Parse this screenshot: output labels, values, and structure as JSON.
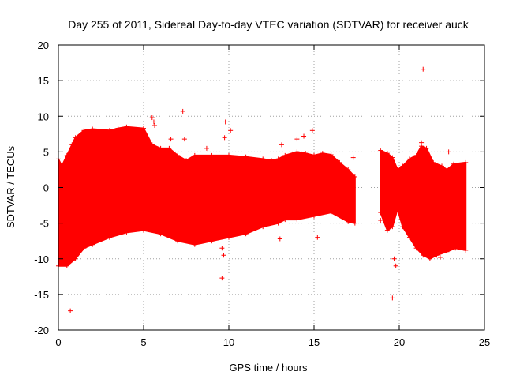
{
  "chart_data": {
    "type": "scatter",
    "title": "Day 255 of 2011, Sidereal Day-to-day VTEC variation (SDTVAR) for receiver auck",
    "xlabel": "GPS time / hours",
    "ylabel": "SDTVAR / TECUs",
    "xlim": [
      0,
      25
    ],
    "ylim": [
      -20,
      20
    ],
    "xticks": [
      0,
      5,
      10,
      15,
      20,
      25
    ],
    "yticks": [
      -20,
      -15,
      -10,
      -5,
      0,
      5,
      10,
      15,
      20
    ],
    "xtick_labels": [
      "0",
      "5",
      "10",
      "15",
      "20",
      "25"
    ],
    "ytick_labels": [
      "-20",
      "-15",
      "-10",
      "-5",
      "0",
      "5",
      "10",
      "15",
      "20"
    ],
    "grid": true,
    "marker": "+",
    "color": "#ff0000",
    "series": [
      {
        "name": "SDTVAR",
        "envelope": {
          "note": "dense band of points; upper and lower bounds vs. GPS time",
          "segments": [
            {
              "upper": [
                [
                  0.0,
                  4.0
                ],
                [
                  0.2,
                  3.0
                ],
                [
                  0.5,
                  4.5
                ],
                [
                  0.8,
                  6.0
                ],
                [
                  1.0,
                  7.0
                ],
                [
                  1.5,
                  8.0
                ],
                [
                  2.0,
                  8.2
                ],
                [
                  3.0,
                  8.0
                ],
                [
                  3.5,
                  8.3
                ],
                [
                  4.0,
                  8.5
                ],
                [
                  5.0,
                  8.3
                ],
                [
                  5.5,
                  6.0
                ],
                [
                  6.0,
                  5.5
                ],
                [
                  6.5,
                  5.5
                ],
                [
                  7.0,
                  4.5
                ],
                [
                  7.5,
                  3.8
                ],
                [
                  8.0,
                  4.5
                ],
                [
                  9.0,
                  4.5
                ],
                [
                  10.0,
                  4.5
                ],
                [
                  11.0,
                  4.3
                ],
                [
                  12.0,
                  4.0
                ],
                [
                  12.5,
                  3.8
                ],
                [
                  12.9,
                  4.0
                ],
                [
                  13.3,
                  4.5
                ],
                [
                  14.0,
                  5.0
                ],
                [
                  14.5,
                  4.8
                ],
                [
                  15.0,
                  4.5
                ],
                [
                  15.5,
                  4.8
                ],
                [
                  16.0,
                  4.6
                ],
                [
                  16.5,
                  3.5
                ],
                [
                  17.0,
                  2.5
                ],
                [
                  17.4,
                  1.5
                ]
              ],
              "lower": [
                [
                  0.0,
                  -11.0
                ],
                [
                  0.5,
                  -11.0
                ],
                [
                  1.0,
                  -10.0
                ],
                [
                  1.5,
                  -8.5
                ],
                [
                  2.0,
                  -8.0
                ],
                [
                  3.0,
                  -7.0
                ],
                [
                  4.0,
                  -6.3
                ],
                [
                  5.0,
                  -6.0
                ],
                [
                  6.0,
                  -6.5
                ],
                [
                  7.0,
                  -7.5
                ],
                [
                  8.0,
                  -8.0
                ],
                [
                  9.0,
                  -7.5
                ],
                [
                  10.0,
                  -7.0
                ],
                [
                  11.0,
                  -6.5
                ],
                [
                  12.0,
                  -5.5
                ],
                [
                  12.9,
                  -5.0
                ],
                [
                  13.3,
                  -4.5
                ],
                [
                  14.0,
                  -4.5
                ],
                [
                  15.0,
                  -4.0
                ],
                [
                  16.0,
                  -3.5
                ],
                [
                  17.0,
                  -4.8
                ],
                [
                  17.4,
                  -5.0
                ]
              ]
            },
            {
              "upper": [
                [
                  18.9,
                  5.2
                ],
                [
                  19.3,
                  4.8
                ],
                [
                  19.6,
                  4.2
                ],
                [
                  19.9,
                  2.5
                ],
                [
                  20.2,
                  3.0
                ],
                [
                  20.6,
                  4.0
                ],
                [
                  21.0,
                  4.5
                ],
                [
                  21.3,
                  5.8
                ],
                [
                  21.6,
                  5.5
                ],
                [
                  22.0,
                  3.5
                ],
                [
                  22.5,
                  3.0
                ],
                [
                  22.8,
                  2.5
                ],
                [
                  23.2,
                  3.3
                ],
                [
                  23.9,
                  3.5
                ]
              ],
              "lower": [
                [
                  18.9,
                  -3.5
                ],
                [
                  19.3,
                  -6.0
                ],
                [
                  19.6,
                  -5.5
                ],
                [
                  19.9,
                  -3.0
                ],
                [
                  20.2,
                  -5.5
                ],
                [
                  20.6,
                  -7.0
                ],
                [
                  21.0,
                  -8.5
                ],
                [
                  21.4,
                  -9.5
                ],
                [
                  21.8,
                  -10.0
                ],
                [
                  22.2,
                  -9.5
                ],
                [
                  22.8,
                  -9.0
                ],
                [
                  23.3,
                  -8.5
                ],
                [
                  23.9,
                  -8.8
                ]
              ]
            }
          ]
        },
        "outliers": [
          {
            "x": 0.7,
            "y": -17.3
          },
          {
            "x": 7.3,
            "y": 10.7
          },
          {
            "x": 7.4,
            "y": 6.8
          },
          {
            "x": 5.5,
            "y": 9.8
          },
          {
            "x": 5.6,
            "y": 9.2
          },
          {
            "x": 5.65,
            "y": 8.7
          },
          {
            "x": 6.6,
            "y": 6.8
          },
          {
            "x": 8.7,
            "y": 5.5
          },
          {
            "x": 9.8,
            "y": 9.2
          },
          {
            "x": 9.75,
            "y": 7.0
          },
          {
            "x": 10.1,
            "y": 8.0
          },
          {
            "x": 9.6,
            "y": -8.5
          },
          {
            "x": 9.7,
            "y": -9.5
          },
          {
            "x": 9.6,
            "y": -12.7
          },
          {
            "x": 13.1,
            "y": 6.0
          },
          {
            "x": 13.0,
            "y": -7.2
          },
          {
            "x": 14.0,
            "y": 6.8
          },
          {
            "x": 14.4,
            "y": 7.2
          },
          {
            "x": 14.9,
            "y": 8.0
          },
          {
            "x": 15.2,
            "y": -7.0
          },
          {
            "x": 17.3,
            "y": 4.2
          },
          {
            "x": 18.9,
            "y": -4.6
          },
          {
            "x": 19.6,
            "y": -15.5
          },
          {
            "x": 19.7,
            "y": -10.0
          },
          {
            "x": 19.8,
            "y": -11.0
          },
          {
            "x": 21.4,
            "y": 16.6
          },
          {
            "x": 21.3,
            "y": 6.3
          },
          {
            "x": 22.9,
            "y": 5.0
          },
          {
            "x": 22.4,
            "y": -9.8
          }
        ]
      }
    ]
  }
}
